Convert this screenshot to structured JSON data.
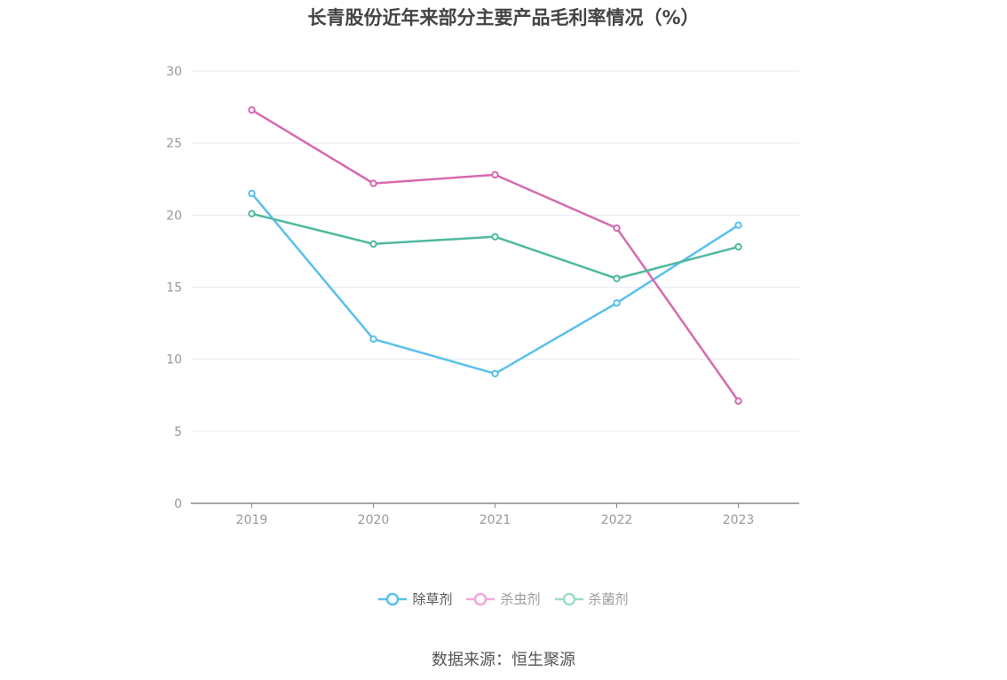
{
  "chart_data": {
    "type": "line",
    "title": "长青股份近年来部分主要产品毛利率情况（%）",
    "categories": [
      "2019",
      "2020",
      "2021",
      "2022",
      "2023"
    ],
    "ylim": [
      0,
      30
    ],
    "yticks": [
      0,
      5,
      10,
      15,
      20,
      25,
      30
    ],
    "grid": true,
    "legend_position": "bottom",
    "series": [
      {
        "name": "除草剂",
        "color": "#5bc0eb",
        "values": [
          21.5,
          11.4,
          9.0,
          13.9,
          19.3
        ]
      },
      {
        "name": "杀虫剂",
        "color": "#d66bb0",
        "values": [
          27.3,
          22.2,
          22.8,
          19.1,
          7.1
        ]
      },
      {
        "name": "杀菌剂",
        "color": "#4fb99f",
        "values": [
          20.1,
          18.0,
          18.5,
          15.6,
          17.8
        ]
      }
    ]
  },
  "legend": {
    "items": [
      {
        "label": "除草剂",
        "color": "#5bc0eb",
        "text_color": "#555555"
      },
      {
        "label": "杀虫剂",
        "color": "#f0a8d6",
        "text_color": "#999999"
      },
      {
        "label": "杀菌剂",
        "color": "#9fdcc8",
        "text_color": "#999999"
      }
    ]
  },
  "source": "数据来源：恒生聚源"
}
